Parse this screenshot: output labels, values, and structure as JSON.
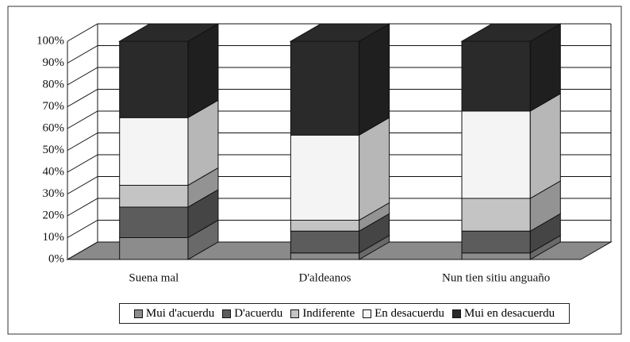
{
  "chart_data": {
    "type": "bar",
    "stacked": true,
    "categories": [
      "Suena mal",
      "D'aldeanos",
      "Nun tien sitiu anguaño"
    ],
    "series": [
      {
        "name": "Mui d'acuerdu",
        "color": "#8c8c8c",
        "values": [
          10,
          3,
          3
        ]
      },
      {
        "name": "D'acuerdu",
        "color": "#5c5c5c",
        "values": [
          14,
          10,
          10
        ]
      },
      {
        "name": "Indiferente",
        "color": "#c4c4c4",
        "values": [
          10,
          5,
          15
        ]
      },
      {
        "name": "En desacuerdu",
        "color": "#f4f4f4",
        "values": [
          31,
          39,
          40
        ]
      },
      {
        "name": "Mui en desacuerdu",
        "color": "#2a2a2a",
        "values": [
          35,
          43,
          32
        ]
      }
    ],
    "ylim": [
      0,
      100
    ],
    "yticks": [
      {
        "value": 0,
        "label": "0%"
      },
      {
        "value": 10,
        "label": "10%"
      },
      {
        "value": 20,
        "label": "20%"
      },
      {
        "value": 30,
        "label": "30%"
      },
      {
        "value": 40,
        "label": "40%"
      },
      {
        "value": 50,
        "label": "50%"
      },
      {
        "value": 60,
        "label": "60%"
      },
      {
        "value": 70,
        "label": "70%"
      },
      {
        "value": 80,
        "label": "80%"
      },
      {
        "value": 90,
        "label": "90%"
      },
      {
        "value": 100,
        "label": "100%"
      }
    ],
    "grid": true,
    "legend": "bottom"
  }
}
